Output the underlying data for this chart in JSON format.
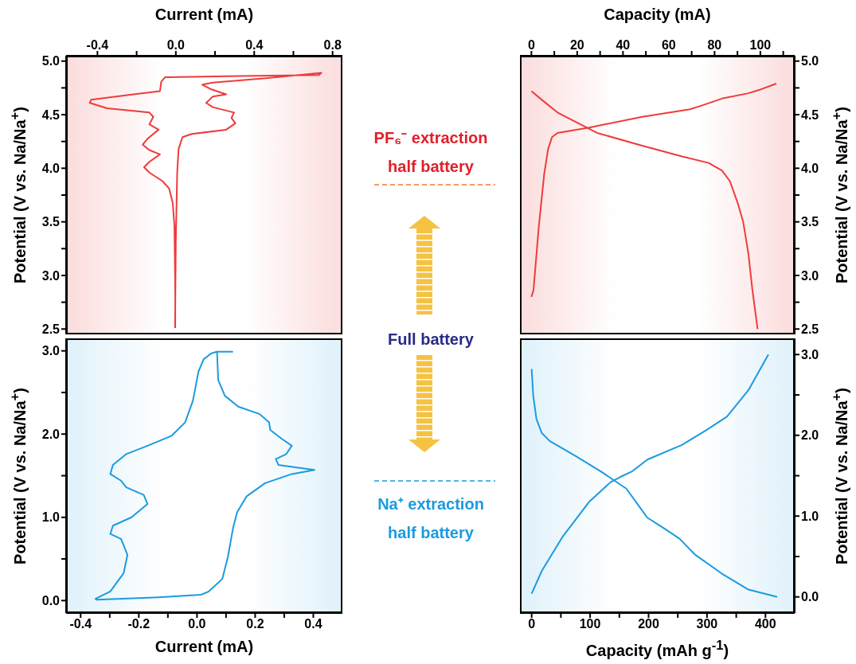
{
  "chart_data": [
    {
      "type": "line",
      "xlabel": "Current (mA)",
      "ylabel": "Potential (V vs. Na/Na$^{+}$)",
      "xlim": [
        -0.56,
        0.85
      ],
      "xticks": [
        -0.4,
        {
          "value": -0.2,
          "label": null
        },
        {
          "value": 0,
          "label": "0.0"
        },
        {
          "value": 0.2,
          "label": null
        },
        0.4,
        {
          "value": 0.6,
          "label": null
        },
        0.8
      ],
      "ylim": [
        2.45,
        5.05
      ],
      "yticks": [
        2.5,
        {
          "value": 2.75,
          "label": null
        },
        {
          "value": 3,
          "label": "3.0"
        },
        {
          "value": 3.25,
          "label": null
        },
        3.5,
        {
          "value": 3.75,
          "label": null
        },
        {
          "value": 4,
          "label": "4.0"
        },
        {
          "value": 4.25,
          "label": null
        },
        4.5,
        {
          "value": 4.75,
          "label": null
        },
        {
          "value": 5,
          "label": "5.0"
        }
      ],
      "series": [
        {
          "color": "#ef3b3b",
          "x": [
            -0.004,
            0.0,
            0.007,
            0.014,
            0.034,
            0.081,
            0.257,
            0.304,
            0.284,
            0.297,
            0.189,
            0.155,
            0.189,
            0.257,
            0.176,
            0.135,
            0.189,
            0.459,
            0.743,
            0.73,
            0.324,
            -0.054,
            -0.074,
            -0.081,
            -0.216,
            -0.432,
            -0.439,
            -0.351,
            -0.135,
            -0.115,
            -0.135,
            -0.088,
            -0.142,
            -0.169,
            -0.135,
            -0.081,
            -0.135,
            -0.162,
            -0.135,
            -0.068,
            -0.034,
            -0.016,
            -0.007,
            -0.003,
            -0.003
          ],
          "values": [
            2.51,
            3.33,
            3.96,
            4.18,
            4.29,
            4.32,
            4.36,
            4.42,
            4.47,
            4.52,
            4.57,
            4.61,
            4.67,
            4.69,
            4.74,
            4.78,
            4.8,
            4.84,
            4.89,
            4.87,
            4.86,
            4.85,
            4.81,
            4.72,
            4.69,
            4.64,
            4.61,
            4.56,
            4.52,
            4.48,
            4.41,
            4.36,
            4.28,
            4.22,
            4.17,
            4.13,
            4.06,
            4.01,
            3.96,
            3.88,
            3.81,
            3.68,
            3.46,
            2.83,
            2.51
          ]
        }
      ]
    },
    {
      "type": "line",
      "xlabel": "Capacity (mA)",
      "y2label": "Potential (V vs. Na/Na$^{+}$)",
      "xlim": [
        -5,
        115
      ],
      "xticks": [
        0,
        {
          "value": 10,
          "label": null
        },
        20,
        {
          "value": 30,
          "label": null
        },
        40,
        {
          "value": 50,
          "label": null
        },
        60,
        {
          "value": 70,
          "label": null
        },
        80,
        {
          "value": 90,
          "label": null
        },
        100,
        {
          "value": 110,
          "label": null
        }
      ],
      "y2lim": [
        2.45,
        5.05
      ],
      "y2ticks": [
        2.5,
        {
          "value": 2.75,
          "label": null
        },
        {
          "value": 3,
          "label": "3.0"
        },
        {
          "value": 3.25,
          "label": null
        },
        3.5,
        {
          "value": 3.75,
          "label": null
        },
        {
          "value": 4,
          "label": "4.0"
        },
        {
          "value": 4.25,
          "label": null
        },
        4.5,
        {
          "value": 4.75,
          "label": null
        },
        {
          "value": 5,
          "label": "5.0"
        }
      ],
      "series": [
        {
          "color": "#ef3b3b",
          "axis": "y2",
          "x": [
            0,
            0.9,
            3.2,
            5.6,
            7.3,
            9.0,
            11.4,
            25.3,
            48.4,
            69.3,
            75.1,
            83.2,
            94.8,
            99.4,
            107
          ],
          "values": [
            2.8,
            2.86,
            3.45,
            3.95,
            4.18,
            4.29,
            4.33,
            4.38,
            4.48,
            4.55,
            4.59,
            4.65,
            4.7,
            4.73,
            4.79
          ]
        },
        {
          "color": "#ef3b3b",
          "axis": "y2",
          "x": [
            0,
            5.6,
            11.4,
            19.5,
            28.7,
            48.4,
            65.8,
            77.4,
            83.2,
            86.7,
            90.2,
            92.5,
            94.8,
            96.5,
            98.8
          ],
          "values": [
            4.72,
            4.62,
            4.52,
            4.43,
            4.33,
            4.21,
            4.11,
            4.05,
            3.98,
            3.88,
            3.67,
            3.5,
            3.2,
            2.87,
            2.5
          ]
        }
      ]
    },
    {
      "type": "line",
      "xlabel": "Current (mA)",
      "ylabel": "Potential (V vs. Na/Na$^{+}$)",
      "xlim": [
        -0.45,
        0.5
      ],
      "xticks": [
        -0.4,
        {
          "value": -0.3,
          "label": null
        },
        -0.2,
        {
          "value": -0.1,
          "label": null
        },
        {
          "value": 0,
          "label": "0.0"
        },
        {
          "value": 0.1,
          "label": null
        },
        0.2,
        {
          "value": 0.3,
          "label": null
        },
        0.4
      ],
      "ylim": [
        -0.15,
        3.15
      ],
      "yticks": [
        {
          "value": 0,
          "label": "0.0"
        },
        {
          "value": 0.5,
          "label": null
        },
        {
          "value": 1,
          "label": "1.0"
        },
        {
          "value": 1.5,
          "label": null
        },
        {
          "value": 2,
          "label": "2.0"
        },
        {
          "value": 2.5,
          "label": null
        },
        {
          "value": 3,
          "label": "3.0"
        }
      ],
      "series": [
        {
          "color": "#1a9be0",
          "x": [
            0.124,
            0.069,
            0.073,
            0.096,
            0.142,
            0.216,
            0.248,
            0.252,
            0.289,
            0.326,
            0.307,
            0.271,
            0.28,
            0.404,
            0.326,
            0.234,
            0.17,
            0.138,
            0.124,
            0.106,
            0.087,
            0.041,
            0.014,
            -0.133,
            -0.344,
            -0.349,
            -0.298,
            -0.252,
            -0.239,
            -0.261,
            -0.298,
            -0.289,
            -0.225,
            -0.17,
            -0.183,
            -0.243,
            -0.261,
            -0.298,
            -0.289,
            -0.243,
            -0.17,
            -0.087,
            -0.041,
            -0.014,
            0.005,
            0.023,
            0.05,
            0.069
          ],
          "values": [
            2.99,
            2.99,
            2.65,
            2.46,
            2.33,
            2.24,
            2.14,
            2.05,
            1.95,
            1.86,
            1.76,
            1.7,
            1.63,
            1.57,
            1.52,
            1.41,
            1.25,
            1.06,
            0.87,
            0.52,
            0.26,
            0.11,
            0.07,
            0.04,
            0.01,
            0.02,
            0.11,
            0.33,
            0.55,
            0.74,
            0.8,
            0.9,
            1.0,
            1.16,
            1.27,
            1.36,
            1.44,
            1.52,
            1.63,
            1.76,
            1.86,
            1.98,
            2.14,
            2.4,
            2.75,
            2.9,
            2.97,
            2.99
          ]
        }
      ]
    },
    {
      "type": "line",
      "xlabel": "Capacity (mAh g$^{-1}$)",
      "y2label": "Potential (V vs. Na/Na$^{+}$)",
      "xlim": [
        -20,
        450
      ],
      "xticks": [
        0,
        {
          "value": 50,
          "label": null
        },
        100,
        {
          "value": 150,
          "label": null
        },
        200,
        {
          "value": 250,
          "label": null
        },
        300,
        {
          "value": 350,
          "label": null
        },
        400
      ],
      "y2lim": [
        -0.2,
        3.2
      ],
      "y2ticks": [
        {
          "value": 0,
          "label": "0.0"
        },
        {
          "value": 0.5,
          "label": null
        },
        {
          "value": 1,
          "label": "1.0"
        },
        {
          "value": 1.5,
          "label": null
        },
        {
          "value": 2,
          "label": "2.0"
        },
        {
          "value": 2.5,
          "label": null
        },
        {
          "value": 3,
          "label": "3.0"
        }
      ],
      "series": [
        {
          "color": "#1a9be0",
          "axis": "y2",
          "x": [
            0,
            2.7,
            8.2,
            17.2,
            30.8,
            76,
            121,
            162,
            185,
            198,
            226,
            253,
            280,
            325,
            371,
            420
          ],
          "values": [
            2.82,
            2.49,
            2.2,
            2.03,
            1.93,
            1.74,
            1.54,
            1.34,
            1.11,
            0.98,
            0.85,
            0.72,
            0.52,
            0.29,
            0.09,
            0.0
          ]
        },
        {
          "color": "#1a9be0",
          "axis": "y2",
          "x": [
            0,
            17.2,
            53.5,
            98.8,
            135,
            153,
            171,
            198,
            257,
            298,
            334,
            371,
            405
          ],
          "values": [
            0.04,
            0.32,
            0.75,
            1.18,
            1.42,
            1.49,
            1.55,
            1.7,
            1.88,
            2.06,
            2.23,
            2.56,
            3.0
          ]
        }
      ]
    },
    {
      "type": "other",
      "annotations": [
        "PF₆⁻ extraction half battery",
        "Full battery",
        "Na⁺ extraction half battery"
      ]
    }
  ]
}
